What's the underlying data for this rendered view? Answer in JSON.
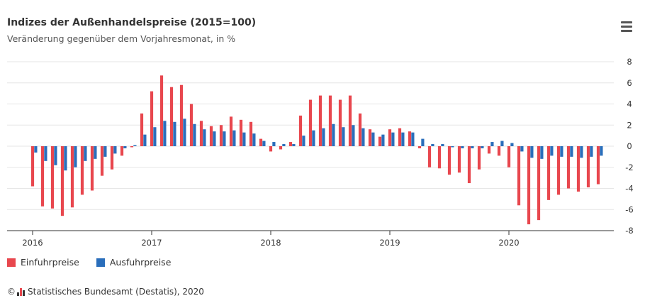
{
  "header": {
    "title": "Indizes der Außenhandelspreise (2015=100)",
    "subtitle": "Veränderung gegenüber dem Vorjahresmonat, in %"
  },
  "menu": {
    "icon": "hamburger-menu-icon"
  },
  "source": {
    "copyright": "©",
    "text": "Statistisches Bundesamt (Destatis), 2020",
    "logo_icon": "destatis-logo-icon"
  },
  "colors": {
    "einfuhr": "#e8474e",
    "ausfuhr": "#2a6ebb",
    "grid": "#e6e6e6",
    "axis": "#333333"
  },
  "chart_data": {
    "type": "bar",
    "title": "Indizes der Außenhandelspreise (2015=100)",
    "subtitle": "Veränderung gegenüber dem Vorjahresmonat, in %",
    "ylim": [
      -8,
      8
    ],
    "yticks": [
      -8,
      -6,
      -4,
      -2,
      0,
      2,
      4,
      6,
      8
    ],
    "y_axis_position": "right",
    "grid": true,
    "legend": "bottom-left",
    "x_labels": [
      "2016",
      "2017",
      "2018",
      "2019",
      "2020"
    ],
    "categories": [
      "2016-01",
      "2016-02",
      "2016-03",
      "2016-04",
      "2016-05",
      "2016-06",
      "2016-07",
      "2016-08",
      "2016-09",
      "2016-10",
      "2016-11",
      "2016-12",
      "2017-01",
      "2017-02",
      "2017-03",
      "2017-04",
      "2017-05",
      "2017-06",
      "2017-07",
      "2017-08",
      "2017-09",
      "2017-10",
      "2017-11",
      "2017-12",
      "2018-01",
      "2018-02",
      "2018-03",
      "2018-04",
      "2018-05",
      "2018-06",
      "2018-07",
      "2018-08",
      "2018-09",
      "2018-10",
      "2018-11",
      "2018-12",
      "2019-01",
      "2019-02",
      "2019-03",
      "2019-04",
      "2019-05",
      "2019-06",
      "2019-07",
      "2019-08",
      "2019-09",
      "2019-10",
      "2019-11",
      "2019-12",
      "2020-01",
      "2020-02",
      "2020-03",
      "2020-04",
      "2020-05",
      "2020-06",
      "2020-07",
      "2020-08",
      "2020-09",
      "2020-10"
    ],
    "series": [
      {
        "name": "Einfuhrpreise",
        "color": "#e8474e",
        "values": [
          -3.8,
          -5.7,
          -5.9,
          -6.6,
          -5.8,
          -4.6,
          -4.2,
          -2.8,
          -2.2,
          -0.9,
          -0.1,
          3.1,
          5.2,
          6.7,
          5.6,
          5.8,
          4.0,
          2.4,
          1.9,
          2.0,
          2.8,
          2.5,
          2.3,
          0.7,
          -0.5,
          -0.3,
          0.4,
          2.9,
          4.4,
          4.8,
          4.8,
          4.4,
          4.8,
          3.1,
          1.6,
          0.9,
          1.6,
          1.7,
          1.4,
          -0.2,
          -2.0,
          -2.1,
          -2.7,
          -2.5,
          -3.5,
          -2.2,
          -0.7,
          -0.9,
          -2.0,
          -5.6,
          -7.4,
          -7.0,
          -5.1,
          -4.6,
          -4.0,
          -4.3,
          -3.9,
          -3.6
        ]
      },
      {
        "name": "Ausfuhrpreise",
        "color": "#2a6ebb",
        "values": [
          -0.6,
          -1.4,
          -1.8,
          -2.3,
          -2.0,
          -1.4,
          -1.2,
          -1.0,
          -0.7,
          -0.2,
          0.1,
          1.1,
          1.8,
          2.4,
          2.3,
          2.6,
          2.1,
          1.6,
          1.4,
          1.4,
          1.5,
          1.3,
          1.2,
          0.5,
          0.4,
          0.2,
          0.2,
          1.0,
          1.5,
          1.7,
          2.1,
          1.8,
          2.0,
          1.7,
          1.3,
          1.1,
          1.3,
          1.3,
          1.3,
          0.7,
          0.2,
          0.2,
          -0.1,
          -0.2,
          -0.2,
          -0.2,
          0.4,
          0.5,
          0.3,
          -0.5,
          -1.1,
          -1.2,
          -0.9,
          -1.0,
          -1.0,
          -1.1,
          -1.0,
          -0.9
        ]
      }
    ]
  }
}
